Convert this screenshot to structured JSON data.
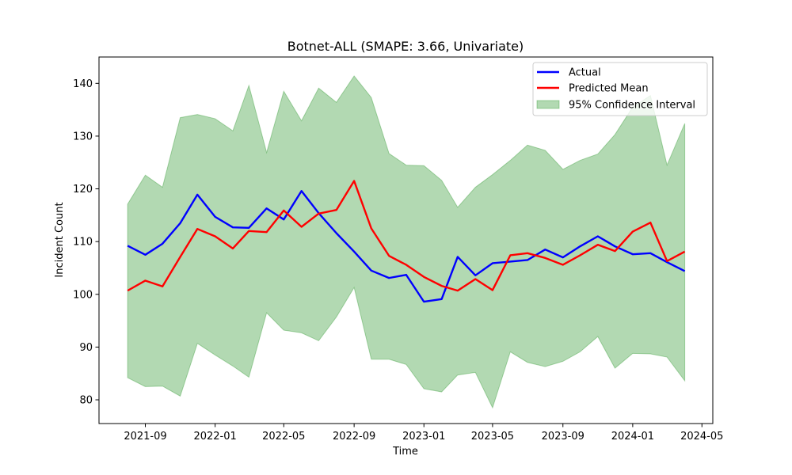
{
  "chart_data": {
    "type": "line",
    "title": "Botnet-ALL (SMAPE: 3.66, Univariate)",
    "xlabel": "Time",
    "ylabel": "Incident Count",
    "x": [
      "2021-08",
      "2021-09",
      "2021-10",
      "2021-11",
      "2021-12",
      "2022-01",
      "2022-02",
      "2022-03",
      "2022-04",
      "2022-05",
      "2022-06",
      "2022-07",
      "2022-08",
      "2022-09",
      "2022-10",
      "2022-11",
      "2022-12",
      "2023-01",
      "2023-02",
      "2023-03",
      "2023-04",
      "2023-05",
      "2023-06",
      "2023-07",
      "2023-08",
      "2023-09",
      "2023-10",
      "2023-11",
      "2023-12",
      "2024-01",
      "2024-02",
      "2024-03",
      "2024-04"
    ],
    "xlim": [
      "2021-06-12",
      "2024-05-20"
    ],
    "ylim": [
      75.5,
      145
    ],
    "x_ticks": [
      "2021-09",
      "2022-01",
      "2022-05",
      "2022-09",
      "2023-01",
      "2023-05",
      "2023-09",
      "2024-01",
      "2024-05"
    ],
    "y_ticks": [
      80,
      90,
      100,
      110,
      120,
      130,
      140
    ],
    "series": [
      {
        "name": "Actual",
        "color": "#0000ff",
        "values": [
          109.2,
          107.5,
          109.6,
          113.5,
          118.9,
          114.7,
          112.7,
          112.6,
          116.3,
          114.2,
          119.6,
          115.4,
          111.6,
          108.1,
          104.5,
          103.1,
          103.7,
          98.6,
          99.1,
          107.1,
          103.6,
          105.9,
          106.2,
          106.5,
          108.5,
          107.0,
          109.1,
          111.0,
          109.1,
          107.6,
          107.8,
          106.1,
          104.4
        ]
      },
      {
        "name": "Predicted Mean",
        "color": "#ff0000",
        "values": [
          100.7,
          102.6,
          101.5,
          107.1,
          112.4,
          111.0,
          108.7,
          112.0,
          111.8,
          115.9,
          112.8,
          115.3,
          116.0,
          121.5,
          112.5,
          107.3,
          105.6,
          103.3,
          101.6,
          100.7,
          102.9,
          100.8,
          107.4,
          107.8,
          106.9,
          105.6,
          107.4,
          109.4,
          108.2,
          111.9,
          113.6,
          106.3,
          108.1
        ]
      }
    ],
    "band": {
      "name": "95% Confidence Interval",
      "color": "#008000",
      "alpha": 0.3,
      "lower": [
        84.2,
        82.5,
        82.6,
        80.7,
        90.7,
        88.5,
        86.4,
        84.3,
        96.5,
        93.2,
        92.7,
        91.2,
        95.7,
        101.3,
        87.7,
        87.7,
        86.7,
        82.1,
        81.5,
        84.7,
        85.2,
        78.5,
        89.1,
        87.1,
        86.3,
        87.3,
        89.1,
        92.0,
        86.0,
        88.8,
        88.7,
        88.1,
        83.6
      ],
      "upper": [
        117.1,
        122.6,
        120.3,
        133.5,
        134.1,
        133.3,
        131.0,
        139.6,
        126.9,
        138.5,
        132.9,
        139.1,
        136.4,
        141.4,
        137.3,
        126.7,
        124.5,
        124.4,
        121.6,
        116.5,
        120.3,
        122.7,
        125.4,
        128.3,
        127.3,
        123.7,
        125.4,
        126.6,
        130.3,
        135.5,
        137.7,
        124.5,
        132.4
      ]
    },
    "legend": {
      "placement": "top-right",
      "entries": [
        "Actual",
        "Predicted Mean",
        "95% Confidence Interval"
      ]
    },
    "grid": false
  }
}
